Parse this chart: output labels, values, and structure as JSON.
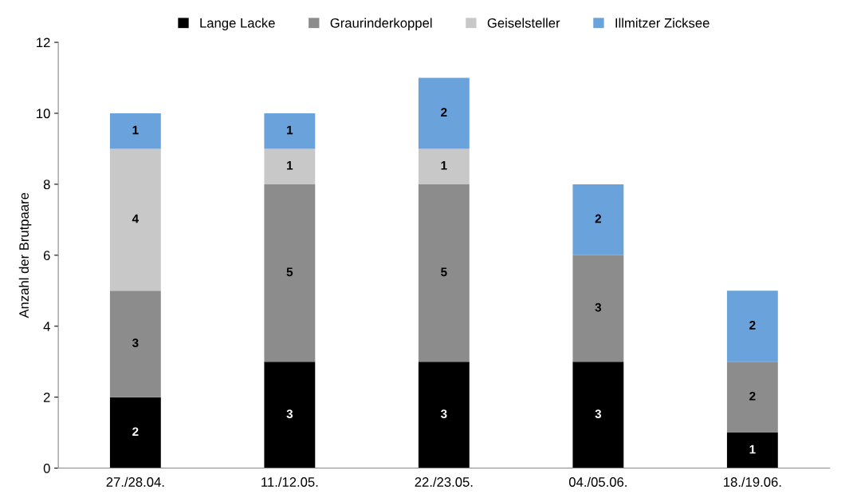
{
  "chart_data": {
    "type": "bar",
    "stacked": true,
    "ylabel": "Anzahl der Brutpaare",
    "categories": [
      "27./28.04.",
      "11./12.05.",
      "22./23.05.",
      "04./05.06.",
      "18./19.06."
    ],
    "series": [
      {
        "name": "Lange Lacke",
        "color": "#000000",
        "values": [
          2,
          3,
          3,
          3,
          1
        ]
      },
      {
        "name": "Graurinderkoppel",
        "color": "#8c8c8c",
        "values": [
          3,
          5,
          5,
          3,
          2
        ]
      },
      {
        "name": "Geiselsteller",
        "color": "#c8c8c8",
        "values": [
          4,
          1,
          1,
          null,
          null
        ]
      },
      {
        "name": "Illmitzer Zicksee",
        "color": "#6aa2dc",
        "values": [
          1,
          1,
          2,
          2,
          2
        ]
      }
    ],
    "ylim": [
      0,
      12
    ],
    "yticks": [
      0,
      2,
      4,
      6,
      8,
      10,
      12
    ],
    "data_labels": true,
    "legend": "top",
    "grid": false
  }
}
